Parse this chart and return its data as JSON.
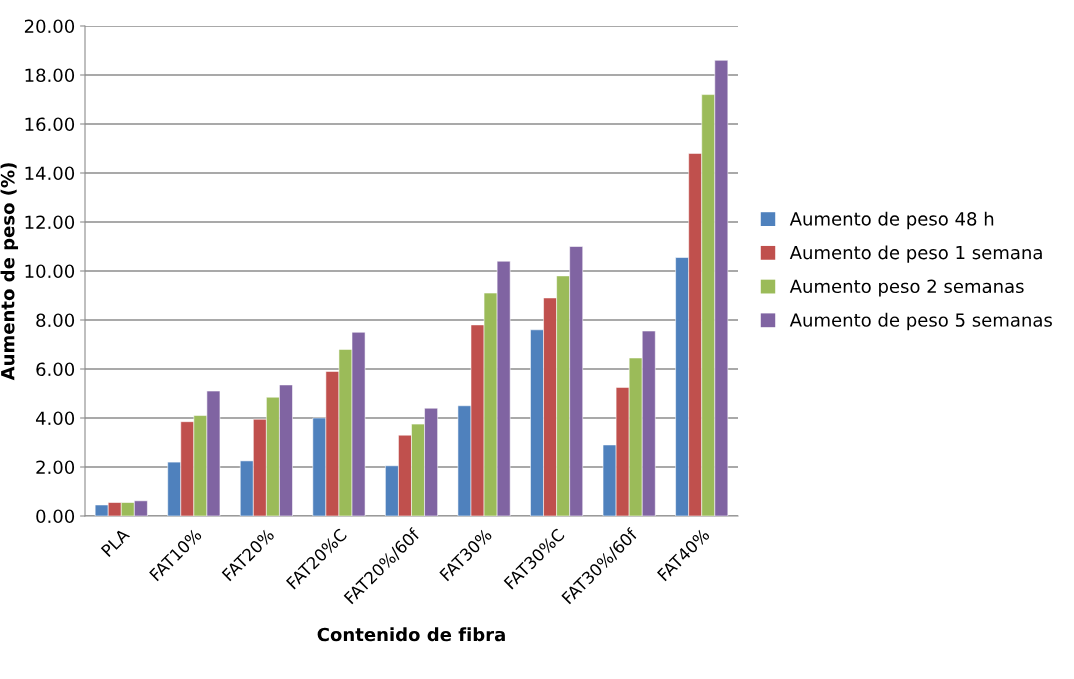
{
  "chart_data": {
    "type": "bar",
    "xlabel": "Contenido de fibra",
    "ylabel": "Aumento de peso (%)",
    "categories": [
      "PLA",
      "FAT10%",
      "FAT20%",
      "FAT20%C",
      "FAT20%/60f",
      "FAT30%",
      "FAT30%C",
      "FAT30%/60f",
      "FAT40%"
    ],
    "series": [
      {
        "name": "Aumento de peso 48 h",
        "color": "#4f81bd",
        "values": [
          0.45,
          2.2,
          2.25,
          4.0,
          2.05,
          4.5,
          7.6,
          2.9,
          10.55
        ]
      },
      {
        "name": "Aumento de peso 1 semana",
        "color": "#c0504d",
        "values": [
          0.55,
          3.85,
          3.95,
          5.9,
          3.3,
          7.8,
          8.9,
          5.25,
          14.8
        ]
      },
      {
        "name": "Aumento peso 2 semanas",
        "color": "#9bbb59",
        "values": [
          0.55,
          4.1,
          4.85,
          6.8,
          3.75,
          9.1,
          9.8,
          6.45,
          17.2
        ]
      },
      {
        "name": "Aumento de peso 5 semanas",
        "color": "#8064a2",
        "values": [
          0.62,
          5.1,
          5.35,
          7.5,
          4.4,
          10.4,
          11.0,
          7.55,
          18.6
        ]
      }
    ],
    "ylim": [
      0,
      20
    ],
    "yticks": [
      {
        "value": 0,
        "label": "0.00"
      },
      {
        "value": 2,
        "label": "2.00"
      },
      {
        "value": 4,
        "label": "4.00"
      },
      {
        "value": 6,
        "label": "6.00"
      },
      {
        "value": 8,
        "label": "8.00"
      },
      {
        "value": 10,
        "label": "10.00"
      },
      {
        "value": 12,
        "label": "12.00"
      },
      {
        "value": 14,
        "label": "14.00"
      },
      {
        "value": 16,
        "label": "16.00"
      },
      {
        "value": 18,
        "label": "18.00"
      },
      {
        "value": 20,
        "label": "20.00"
      }
    ],
    "grid": "y",
    "legend": "right"
  }
}
